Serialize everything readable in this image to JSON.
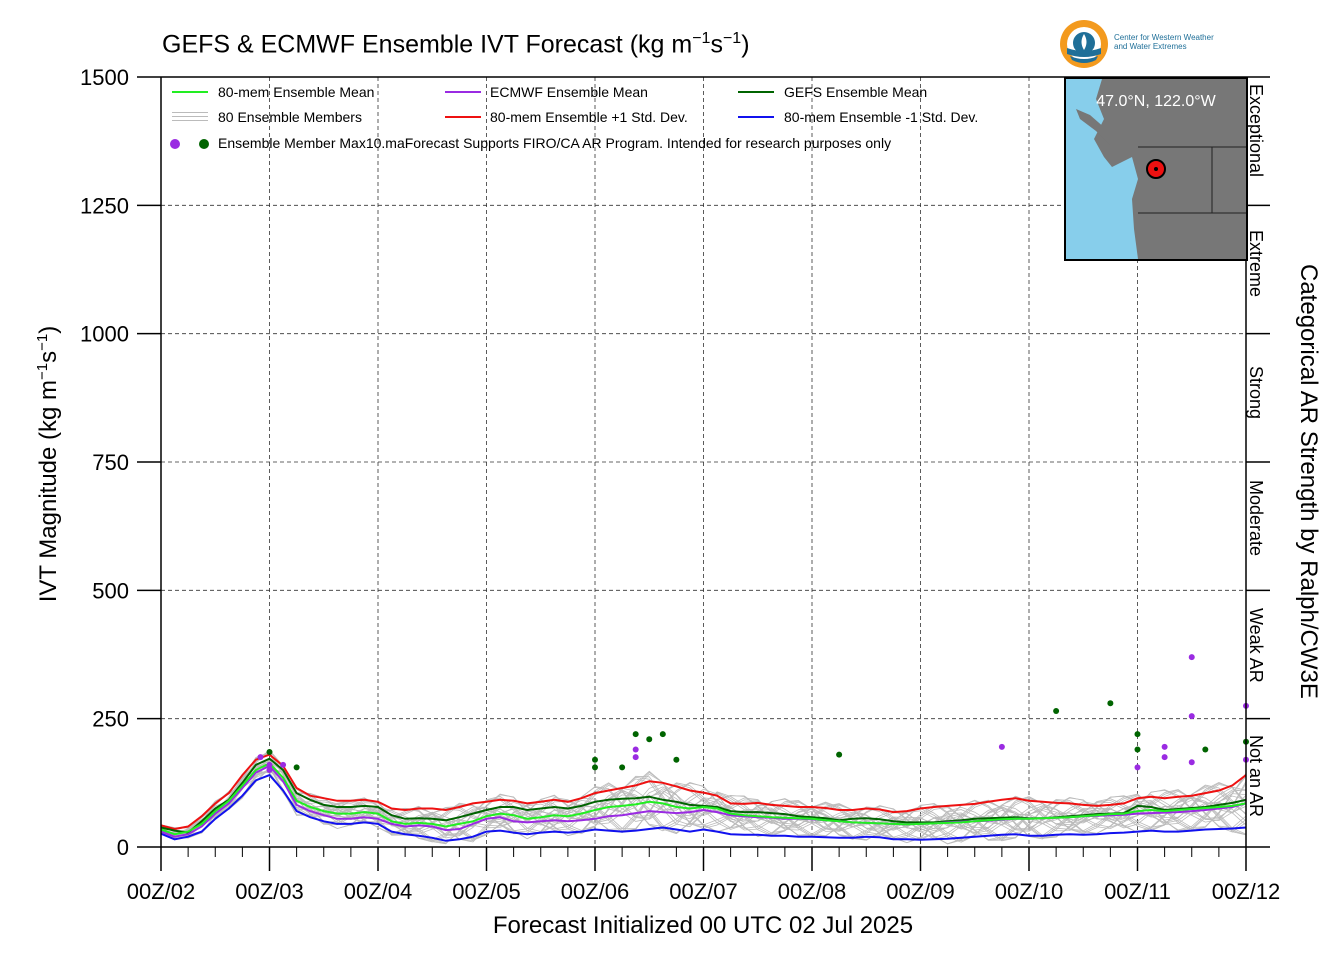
{
  "title": "GEFS & ECMWF Ensemble IVT Forecast (kg m",
  "title_sup1": "−1",
  "title_mid": "s",
  "title_sup2": "−1",
  "title_end": ")",
  "logo": {
    "line1": "Center for Western Weather",
    "line2": "and Water Extremes"
  },
  "xlabel": "Forecast Initialized 00 UTC 02 Jul 2025",
  "ylabel": "IVT Magnitude (kg m",
  "ylabel_sup1": "−1",
  "ylabel_mid": "s",
  "ylabel_sup2": "−1",
  "ylabel_end": ")",
  "rlabel": "Categorical AR Strength by Ralph/CW3E",
  "inset_label": "47.0°N, 122.0°W",
  "legend": {
    "item1": "80-mem Ensemble Mean",
    "item2": "ECMWF Ensemble Mean",
    "item3": "GEFS Ensemble Mean",
    "item4": "80 Ensemble Members",
    "item5": "80-mem Ensemble +1 Std. Dev.",
    "item6": "80-mem Ensemble -1 Std. Dev.",
    "item7": "Ensemble Member Max10.maForecast Supports FIRO/CA AR Program. Intended for research purposes only"
  },
  "colors": {
    "ens_mean": "#22ee22",
    "ecmwf": "#9a2be2",
    "gefs": "#006400",
    "members": "#bbbbbb",
    "plus_sd": "#ee1111",
    "minus_sd": "#1111ee",
    "ocean": "#87ceeb",
    "land": "#777777",
    "logo_orange": "#f39a1e",
    "logo_blue": "#1f6f98"
  },
  "chart_data": {
    "type": "line",
    "xlabel": "Forecast Initialized 00 UTC 02 Jul 2025",
    "ylabel": "IVT Magnitude (kg m−1s−1)",
    "ylim": [
      0,
      1500
    ],
    "xlim": [
      0,
      240
    ],
    "x_unit": "forecast hours",
    "x_ticks": [
      0,
      24,
      48,
      72,
      96,
      120,
      144,
      168,
      192,
      216,
      240
    ],
    "x_tick_labels": [
      "00Z/02",
      "00Z/03",
      "00Z/04",
      "00Z/05",
      "00Z/06",
      "00Z/07",
      "00Z/08",
      "00Z/09",
      "00Z/10",
      "00Z/11",
      "00Z/12"
    ],
    "y_ticks": [
      0,
      250,
      500,
      750,
      1000,
      1250,
      1500
    ],
    "y_tick_labels": [
      "0",
      "250",
      "500",
      "750",
      "1000",
      "1250",
      "1500"
    ],
    "grid": true,
    "legend_position": "top-left",
    "categories_right": [
      {
        "label": "Not an AR",
        "range": [
          0,
          250
        ]
      },
      {
        "label": "Weak AR",
        "range": [
          250,
          500
        ]
      },
      {
        "label": "Moderate",
        "range": [
          500,
          750
        ]
      },
      {
        "label": "Strong",
        "range": [
          750,
          1000
        ]
      },
      {
        "label": "Extreme",
        "range": [
          1000,
          1250
        ]
      },
      {
        "label": "Exceptional",
        "range": [
          1250,
          1500
        ]
      }
    ],
    "x": [
      0,
      3,
      6,
      9,
      12,
      15,
      18,
      21,
      24,
      27,
      30,
      33,
      36,
      39,
      42,
      45,
      48,
      51,
      54,
      57,
      60,
      63,
      66,
      69,
      72,
      75,
      78,
      81,
      84,
      87,
      90,
      93,
      96,
      99,
      102,
      105,
      108,
      111,
      114,
      117,
      120,
      123,
      126,
      129,
      132,
      135,
      138,
      141,
      144,
      147,
      150,
      153,
      156,
      159,
      162,
      165,
      168,
      171,
      174,
      177,
      180,
      183,
      186,
      189,
      192,
      195,
      198,
      201,
      204,
      207,
      210,
      213,
      216,
      219,
      222,
      225,
      228,
      231,
      234,
      237,
      240
    ],
    "series": [
      {
        "name": "80-mem Ensemble Mean",
        "color": "#22ee22",
        "values": [
          34,
          25,
          30,
          45,
          70,
          90,
          120,
          150,
          163,
          135,
          90,
          78,
          70,
          65,
          65,
          68,
          65,
          50,
          45,
          47,
          45,
          40,
          45,
          50,
          60,
          65,
          62,
          55,
          58,
          62,
          60,
          65,
          72,
          78,
          80,
          83,
          88,
          85,
          78,
          75,
          78,
          75,
          65,
          62,
          60,
          58,
          57,
          56,
          55,
          52,
          50,
          48,
          47,
          46,
          45,
          44,
          45,
          46,
          47,
          48,
          50,
          52,
          54,
          55,
          55,
          56,
          57,
          58,
          60,
          62,
          64,
          65,
          70,
          72,
          70,
          72,
          74,
          76,
          78,
          80,
          85
        ]
      },
      {
        "name": "ECMWF Ensemble Mean",
        "color": "#9a2be2",
        "values": [
          30,
          20,
          25,
          40,
          65,
          85,
          115,
          145,
          158,
          128,
          82,
          70,
          62,
          55,
          55,
          58,
          55,
          45,
          40,
          42,
          40,
          33,
          35,
          45,
          55,
          58,
          50,
          48,
          50,
          52,
          50,
          52,
          55,
          60,
          62,
          66,
          70,
          68,
          66,
          68,
          72,
          68,
          62,
          60,
          58,
          57,
          55,
          55,
          54,
          52,
          50,
          48,
          47,
          46,
          45,
          44,
          45,
          46,
          48,
          49,
          50,
          51,
          53,
          55,
          55,
          56,
          57,
          58,
          60,
          61,
          62,
          63,
          65,
          66,
          67,
          68,
          70,
          72,
          75,
          78,
          85
        ]
      },
      {
        "name": "GEFS Ensemble Mean",
        "color": "#006400",
        "values": [
          38,
          32,
          28,
          50,
          75,
          92,
          125,
          160,
          172,
          150,
          105,
          92,
          82,
          78,
          78,
          80,
          78,
          62,
          55,
          56,
          55,
          52,
          58,
          65,
          72,
          78,
          78,
          72,
          75,
          78,
          75,
          80,
          88,
          92,
          94,
          95,
          98,
          92,
          88,
          82,
          80,
          78,
          70,
          68,
          68,
          66,
          64,
          60,
          58,
          56,
          52,
          55,
          56,
          54,
          50,
          48,
          48,
          48,
          50,
          52,
          55,
          56,
          57,
          58,
          56,
          56,
          58,
          60,
          62,
          64,
          65,
          66,
          80,
          78,
          72,
          74,
          76,
          78,
          82,
          86,
          92
        ]
      },
      {
        "name": "80-mem Ensemble +1 Std. Dev.",
        "color": "#ee1111",
        "values": [
          42,
          35,
          40,
          60,
          85,
          105,
          140,
          170,
          180,
          158,
          115,
          100,
          95,
          90,
          90,
          92,
          88,
          75,
          72,
          75,
          75,
          72,
          78,
          85,
          88,
          92,
          90,
          85,
          88,
          92,
          88,
          95,
          105,
          110,
          115,
          120,
          128,
          125,
          118,
          110,
          106,
          100,
          85,
          84,
          86,
          82,
          80,
          78,
          78,
          76,
          72,
          72,
          75,
          73,
          68,
          70,
          75,
          78,
          80,
          82,
          84,
          88,
          92,
          95,
          90,
          88,
          86,
          85,
          82,
          80,
          82,
          85,
          95,
          98,
          95,
          98,
          100,
          105,
          110,
          120,
          140
        ]
      },
      {
        "name": "80-mem Ensemble -1 Std. Dev.",
        "color": "#1111ee",
        "values": [
          26,
          15,
          20,
          30,
          55,
          75,
          100,
          130,
          140,
          110,
          70,
          58,
          50,
          45,
          45,
          48,
          45,
          30,
          25,
          22,
          18,
          12,
          15,
          20,
          30,
          32,
          28,
          25,
          28,
          30,
          28,
          30,
          34,
          32,
          30,
          32,
          35,
          38,
          34,
          30,
          34,
          30,
          25,
          24,
          24,
          22,
          22,
          20,
          20,
          19,
          18,
          18,
          20,
          19,
          15,
          15,
          14,
          15,
          16,
          18,
          20,
          22,
          24,
          25,
          22,
          22,
          24,
          25,
          24,
          25,
          27,
          28,
          30,
          32,
          30,
          30,
          32,
          34,
          35,
          36,
          38
        ]
      }
    ],
    "member_max_points": [
      {
        "x": 22,
        "y": 175,
        "color": "#9a2be2"
      },
      {
        "x": 24,
        "y": 185,
        "color": "#006400"
      },
      {
        "x": 24,
        "y": 160,
        "color": "#9a2be2"
      },
      {
        "x": 24,
        "y": 150,
        "color": "#9a2be2"
      },
      {
        "x": 27,
        "y": 160,
        "color": "#9a2be2"
      },
      {
        "x": 30,
        "y": 155,
        "color": "#006400"
      },
      {
        "x": 96,
        "y": 170,
        "color": "#006400"
      },
      {
        "x": 96,
        "y": 155,
        "color": "#006400"
      },
      {
        "x": 102,
        "y": 155,
        "color": "#006400"
      },
      {
        "x": 105,
        "y": 220,
        "color": "#006400"
      },
      {
        "x": 105,
        "y": 190,
        "color": "#9a2be2"
      },
      {
        "x": 105,
        "y": 175,
        "color": "#9a2be2"
      },
      {
        "x": 108,
        "y": 210,
        "color": "#006400"
      },
      {
        "x": 111,
        "y": 220,
        "color": "#006400"
      },
      {
        "x": 114,
        "y": 170,
        "color": "#006400"
      },
      {
        "x": 150,
        "y": 180,
        "color": "#006400"
      },
      {
        "x": 186,
        "y": 195,
        "color": "#9a2be2"
      },
      {
        "x": 198,
        "y": 265,
        "color": "#006400"
      },
      {
        "x": 210,
        "y": 280,
        "color": "#006400"
      },
      {
        "x": 216,
        "y": 220,
        "color": "#006400"
      },
      {
        "x": 216,
        "y": 190,
        "color": "#006400"
      },
      {
        "x": 216,
        "y": 155,
        "color": "#9a2be2"
      },
      {
        "x": 222,
        "y": 195,
        "color": "#9a2be2"
      },
      {
        "x": 222,
        "y": 175,
        "color": "#9a2be2"
      },
      {
        "x": 228,
        "y": 370,
        "color": "#9a2be2"
      },
      {
        "x": 228,
        "y": 255,
        "color": "#9a2be2"
      },
      {
        "x": 228,
        "y": 165,
        "color": "#9a2be2"
      },
      {
        "x": 231,
        "y": 190,
        "color": "#006400"
      },
      {
        "x": 240,
        "y": 275,
        "color": "#9a2be2"
      },
      {
        "x": 240,
        "y": 205,
        "color": "#006400"
      },
      {
        "x": 240,
        "y": 170,
        "color": "#9a2be2"
      }
    ],
    "members": {
      "count": 80,
      "color": "#bbbbbb"
    }
  }
}
